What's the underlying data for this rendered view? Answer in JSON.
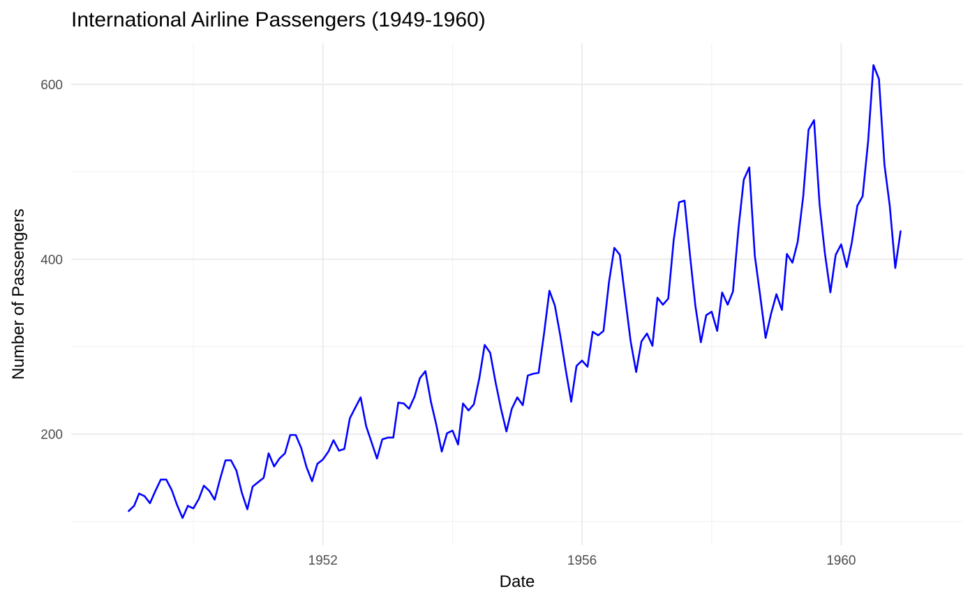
{
  "chart_data": {
    "type": "line",
    "title": "International Airline Passengers (1949-1960)",
    "xlabel": "Date",
    "ylabel": "Number of Passengers",
    "x_start": "1949-01",
    "x_frequency": "monthly",
    "xlim": [
      "1948-02-12",
      "1961-11-18"
    ],
    "ylim": [
      73,
      647
    ],
    "x_ticks": [
      "1952",
      "1956",
      "1960"
    ],
    "y_ticks": [
      200,
      400,
      600
    ],
    "grid": true,
    "line_color": "#0000FF",
    "series": [
      {
        "values": [
          112,
          118,
          132,
          129,
          121,
          135,
          148,
          148,
          136,
          119,
          104,
          118,
          115,
          126,
          141,
          135,
          125,
          149,
          170,
          170,
          158,
          133,
          114,
          140,
          145,
          150,
          178,
          163,
          172,
          178,
          199,
          199,
          184,
          162,
          146,
          166,
          171,
          180,
          193,
          181,
          183,
          218,
          230,
          242,
          209,
          191,
          172,
          194,
          196,
          196,
          236,
          235,
          229,
          243,
          264,
          272,
          237,
          211,
          180,
          201,
          204,
          188,
          235,
          227,
          234,
          264,
          302,
          293,
          259,
          229,
          203,
          229,
          242,
          233,
          267,
          269,
          270,
          315,
          364,
          347,
          312,
          274,
          237,
          278,
          284,
          277,
          317,
          313,
          318,
          374,
          413,
          405,
          355,
          306,
          271,
          306,
          315,
          301,
          356,
          348,
          355,
          422,
          465,
          467,
          404,
          347,
          305,
          336,
          340,
          318,
          362,
          348,
          363,
          435,
          491,
          505,
          404,
          359,
          310,
          337,
          360,
          342,
          406,
          396,
          420,
          472,
          548,
          559,
          463,
          407,
          362,
          405,
          417,
          391,
          419,
          461,
          472,
          535,
          622,
          606,
          508,
          461,
          390,
          432
        ]
      }
    ]
  }
}
